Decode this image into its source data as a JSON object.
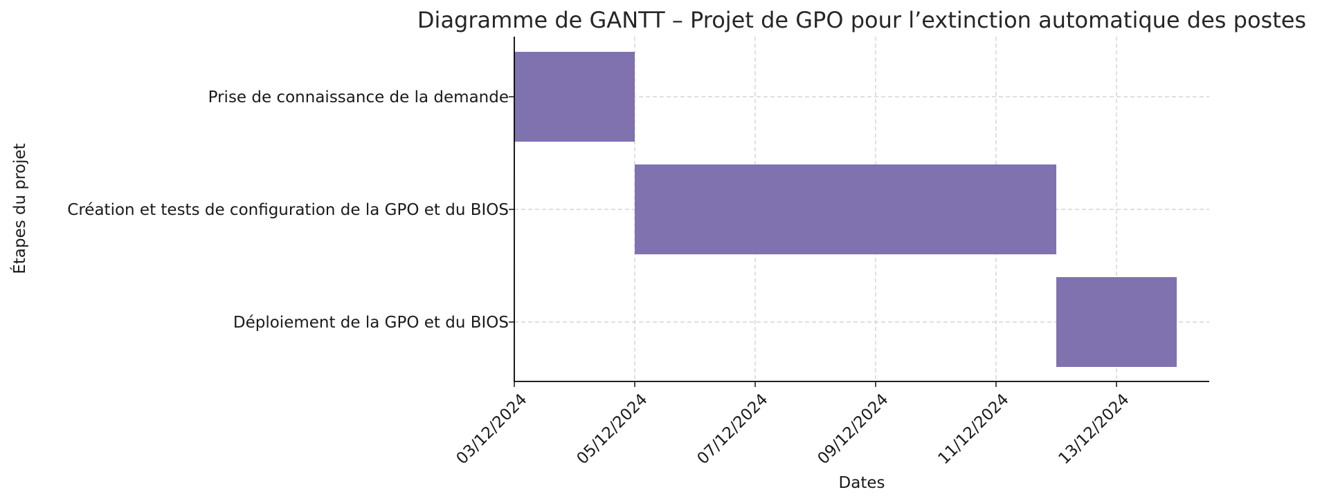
{
  "chart_data": {
    "type": "gantt",
    "title": "Diagramme de GANTT – Projet de GPO pour l’extinction automatique des postes",
    "xlabel": "Dates",
    "ylabel": "Étapes du projet",
    "xlim": [
      "2024-12-03",
      "2024-12-14"
    ],
    "xticks": [
      "03/12/2024",
      "05/12/2024",
      "07/12/2024",
      "09/12/2024",
      "11/12/2024",
      "13/12/2024"
    ],
    "grid": true,
    "bar_color": "#7f72af",
    "tasks": [
      {
        "name": "Prise de connaissance de la demande",
        "start": "2024-12-03",
        "end": "2024-12-05"
      },
      {
        "name": "Création et tests de configuration de la GPO et du BIOS",
        "start": "2024-12-05",
        "end": "2024-12-12"
      },
      {
        "name": "Déploiement de la GPO et du BIOS",
        "start": "2024-12-12",
        "end": "2024-12-14"
      }
    ]
  }
}
